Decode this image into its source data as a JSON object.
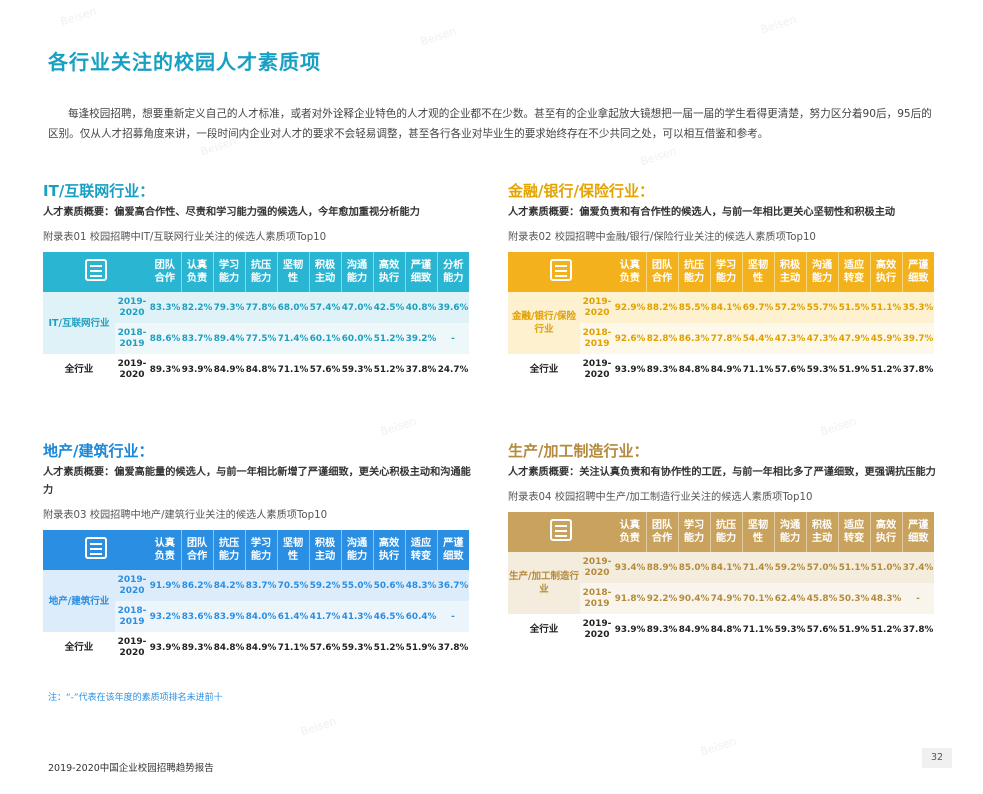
{
  "page_title": "各行业关注的校园人才素质项",
  "intro": "每逢校园招聘，想要重新定义自己的人才标准，或者对外诠释企业特色的人才观的企业都不在少数。甚至有的企业拿起放大镜想把一届一届的学生看得更清楚，努力区分着90后，95后的区别。仅从人才招募角度来讲，一段时间内企业对人才的要求不会轻易调整，甚至各行各业对毕业生的要求始终存在不少共同之处，可以相互借鉴和参考。",
  "watermark": "Beisen",
  "sections": [
    {
      "title": "IT/互联网行业：",
      "summary": "人才素质概要：偏爱高合作性、尽责和学习能力强的候选人，今年愈加重视分析能力",
      "caption": "附录表01  校园招聘中IT/互联网行业关注的候选人素质项Top10",
      "icon": "hand-touch-icon",
      "headers": [
        "团队合作",
        "认真负责",
        "学习能力",
        "抗压能力",
        "坚韧性",
        "积极主动",
        "沟通能力",
        "高效执行",
        "严谨细致",
        "分析能力"
      ],
      "category": "IT/互联网行业",
      "rows": [
        {
          "year": "2019-2020",
          "values": [
            "83.3%",
            "82.2%",
            "79.3%",
            "77.8%",
            "68.0%",
            "57.4%",
            "47.0%",
            "42.5%",
            "40.8%",
            "39.6%"
          ]
        },
        {
          "year": "2018-2019",
          "values": [
            "88.6%",
            "83.7%",
            "89.4%",
            "77.5%",
            "71.4%",
            "60.1%",
            "60.0%",
            "51.2%",
            "39.2%",
            "-"
          ]
        }
      ],
      "total": {
        "category": "全行业",
        "year": "2019-2020",
        "values": [
          "89.3%",
          "93.9%",
          "84.9%",
          "84.8%",
          "71.1%",
          "57.6%",
          "59.3%",
          "51.2%",
          "37.8%",
          "24.7%"
        ]
      }
    },
    {
      "title": "金融/银行/保险行业：",
      "summary": "人才素质概要：偏爱负责和有合作性的候选人，与前一年相比更关心坚韧性和积极主动",
      "caption": "附录表02  校园招聘中金融/银行/保险行业关注的候选人素质项Top10",
      "icon": "document-icon",
      "headers": [
        "认真负责",
        "团队合作",
        "抗压能力",
        "学习能力",
        "坚韧性",
        "积极主动",
        "沟通能力",
        "适应转变",
        "高效执行",
        "严谨细致"
      ],
      "category": "金融/银行/保险行业",
      "rows": [
        {
          "year": "2019-2020",
          "values": [
            "92.9%",
            "88.2%",
            "85.5%",
            "84.1%",
            "69.7%",
            "57.2%",
            "55.7%",
            "51.5%",
            "51.1%",
            "35.3%"
          ]
        },
        {
          "year": "2018-2019",
          "values": [
            "92.6%",
            "82.8%",
            "86.3%",
            "77.8%",
            "54.4%",
            "47.3%",
            "47.3%",
            "47.9%",
            "45.9%",
            "39.7%"
          ]
        }
      ],
      "total": {
        "category": "全行业",
        "year": "2019-2020",
        "values": [
          "93.9%",
          "89.3%",
          "84.8%",
          "84.9%",
          "71.1%",
          "57.6%",
          "59.3%",
          "51.9%",
          "51.2%",
          "37.8%"
        ]
      }
    },
    {
      "title": "地产/建筑行业：",
      "summary": "人才素质概要：偏爱高能量的候选人，与前一年相比新增了严谨细致，更关心积极主动和沟通能力",
      "caption": "附录表03  校园招聘中地产/建筑行业关注的候选人素质项Top10",
      "icon": "building-icon",
      "headers": [
        "认真负责",
        "团队合作",
        "抗压能力",
        "学习能力",
        "坚韧性",
        "积极主动",
        "沟通能力",
        "高效执行",
        "适应转变",
        "严谨细致"
      ],
      "category": "地产/建筑行业",
      "rows": [
        {
          "year": "2019-2020",
          "values": [
            "91.9%",
            "86.2%",
            "84.2%",
            "83.7%",
            "70.5%",
            "59.2%",
            "55.0%",
            "50.6%",
            "48.3%",
            "36.7%"
          ]
        },
        {
          "year": "2018-2019",
          "values": [
            "93.2%",
            "83.6%",
            "83.9%",
            "84.0%",
            "61.4%",
            "41.7%",
            "41.3%",
            "46.5%",
            "60.4%",
            "-"
          ]
        }
      ],
      "total": {
        "category": "全行业",
        "year": "2019-2020",
        "values": [
          "93.9%",
          "89.3%",
          "84.8%",
          "84.9%",
          "71.1%",
          "57.6%",
          "59.3%",
          "51.2%",
          "51.9%",
          "37.8%"
        ]
      }
    },
    {
      "title": "生产/加工制造行业：",
      "summary": "人才素质概要：关注认真负责和有协作性的工匠，与前一年相比多了严谨细致，更强调抗压能力",
      "caption": "附录表04  校园招聘中生产/加工制造行业关注的候选人素质项Top10",
      "icon": "factory-icon",
      "headers": [
        "认真负责",
        "团队合作",
        "学习能力",
        "抗压能力",
        "坚韧性",
        "沟通能力",
        "积极主动",
        "适应转变",
        "高效执行",
        "严谨细致"
      ],
      "category": "生产/加工制造行业",
      "rows": [
        {
          "year": "2019-2020",
          "values": [
            "93.4%",
            "88.9%",
            "85.0%",
            "84.1%",
            "71.4%",
            "59.2%",
            "57.0%",
            "51.1%",
            "51.0%",
            "37.4%"
          ]
        },
        {
          "year": "2018-2019",
          "values": [
            "91.8%",
            "92.2%",
            "90.4%",
            "74.9%",
            "70.1%",
            "62.4%",
            "45.8%",
            "50.3%",
            "48.3%",
            "-"
          ]
        }
      ],
      "total": {
        "category": "全行业",
        "year": "2019-2020",
        "values": [
          "93.9%",
          "89.3%",
          "84.9%",
          "84.8%",
          "71.1%",
          "59.3%",
          "57.6%",
          "51.9%",
          "51.2%",
          "37.8%"
        ]
      }
    }
  ],
  "note": "注：“-”代表在该年度的素质项排名未进前十",
  "footer_title": "2019-2020中国企业校园招聘趋势报告",
  "page_number": "32",
  "colors": {
    "teal": "#2ab6d3",
    "gold": "#f3b21b",
    "blue": "#2a8fe3",
    "tan": "#c9a35e"
  }
}
